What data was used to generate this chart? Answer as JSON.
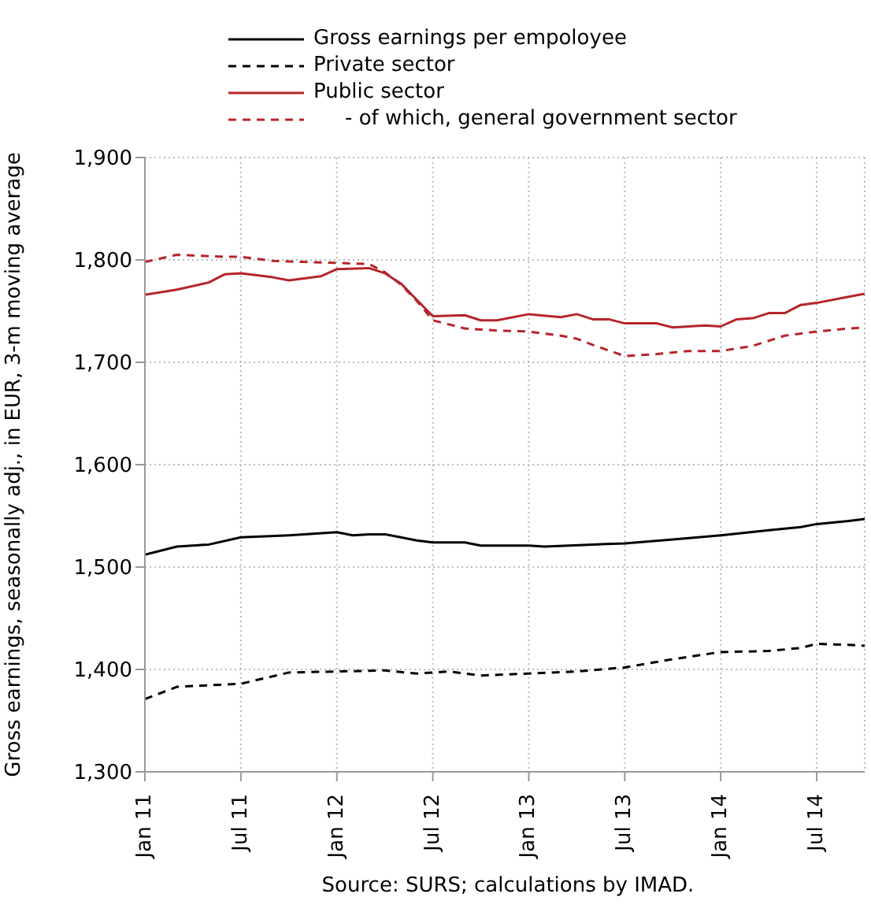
{
  "chart_data": {
    "type": "line",
    "ylabel": "Gross earnings, seasonally adj., in EUR, 3-m moving average",
    "annotations": [
      "Source: SURS; calculations by IMAD."
    ],
    "legend": "top",
    "grid": true,
    "xlim": [
      "2011-01",
      "2014-10"
    ],
    "xticks": [
      {
        "value": "2011-01",
        "label": "Jan 11"
      },
      {
        "value": "2011-07",
        "label": "Jul 11"
      },
      {
        "value": "2012-01",
        "label": "Jan 12"
      },
      {
        "value": "2012-07",
        "label": "Jul 12"
      },
      {
        "value": "2013-01",
        "label": "Jan 13"
      },
      {
        "value": "2013-07",
        "label": "Jul 13"
      },
      {
        "value": "2014-01",
        "label": "Jan 14"
      },
      {
        "value": "2014-07",
        "label": "Jul 14"
      }
    ],
    "ylim": [
      1300,
      1900
    ],
    "yticks": [
      {
        "value": 1300,
        "label": "1,300"
      },
      {
        "value": 1400,
        "label": "1,400"
      },
      {
        "value": 1500,
        "label": "1,500"
      },
      {
        "value": 1600,
        "label": "1,600"
      },
      {
        "value": 1700,
        "label": "1,700"
      },
      {
        "value": 1800,
        "label": "1,800"
      },
      {
        "value": 1900,
        "label": "1,900"
      }
    ],
    "series": [
      {
        "name": "Gross earnings per empoloyee",
        "color": "#000000",
        "line_style": "solid",
        "x": [
          "2011-01",
          "2011-03",
          "2011-05",
          "2011-07",
          "2011-10",
          "2012-01",
          "2012-02",
          "2012-03",
          "2012-04",
          "2012-05",
          "2012-06",
          "2012-07",
          "2012-09",
          "2012-10",
          "2013-01",
          "2013-02",
          "2013-05",
          "2013-07",
          "2013-10",
          "2014-01",
          "2014-04",
          "2014-06",
          "2014-07",
          "2014-09",
          "2014-10"
        ],
        "values": [
          1512,
          1520,
          1522,
          1529,
          1531,
          1534,
          1531,
          1532,
          1532,
          1529,
          1526,
          1524,
          1524,
          1521,
          1521,
          1520,
          1522,
          1523,
          1527,
          1531,
          1536,
          1539,
          1542,
          1545,
          1547
        ]
      },
      {
        "name": "Private sector",
        "color": "#000000",
        "line_style": "dashed",
        "x": [
          "2011-01",
          "2011-03",
          "2011-07",
          "2011-10",
          "2012-01",
          "2012-04",
          "2012-06",
          "2012-08",
          "2012-10",
          "2013-01",
          "2013-04",
          "2013-07",
          "2013-10",
          "2014-01",
          "2014-04",
          "2014-06",
          "2014-07",
          "2014-09",
          "2014-10"
        ],
        "values": [
          1371,
          1383,
          1386,
          1397,
          1398,
          1399,
          1396,
          1398,
          1394,
          1396,
          1398,
          1402,
          1410,
          1417,
          1418,
          1421,
          1425,
          1424,
          1423
        ]
      },
      {
        "name": "Public sector",
        "color": "#b5252b",
        "line_style": "solid",
        "x": [
          "2011-01",
          "2011-03",
          "2011-05",
          "2011-06",
          "2011-07",
          "2011-09",
          "2011-10",
          "2011-12",
          "2012-01",
          "2012-03",
          "2012-04",
          "2012-05",
          "2012-06",
          "2012-07",
          "2012-09",
          "2012-10",
          "2012-11",
          "2013-01",
          "2013-03",
          "2013-04",
          "2013-05",
          "2013-06",
          "2013-07",
          "2013-09",
          "2013-10",
          "2013-12",
          "2014-01",
          "2014-02",
          "2014-03",
          "2014-04",
          "2014-05",
          "2014-06",
          "2014-07",
          "2014-09",
          "2014-10"
        ],
        "values": [
          1766,
          1771,
          1778,
          1786,
          1787,
          1783,
          1780,
          1784,
          1791,
          1792,
          1787,
          1777,
          1761,
          1745,
          1746,
          1741,
          1741,
          1747,
          1744,
          1747,
          1742,
          1742,
          1738,
          1738,
          1734,
          1736,
          1735,
          1742,
          1743,
          1748,
          1748,
          1756,
          1758,
          1764,
          1767
        ]
      },
      {
        "name": "- of which, general government sector",
        "color": "#b5252b",
        "line_style": "dashed",
        "x": [
          "2011-01",
          "2011-03",
          "2011-06",
          "2011-07",
          "2011-09",
          "2011-11",
          "2012-01",
          "2012-03",
          "2012-04",
          "2012-05",
          "2012-06",
          "2012-07",
          "2012-09",
          "2012-11",
          "2013-01",
          "2013-03",
          "2013-04",
          "2013-05",
          "2013-07",
          "2013-09",
          "2013-11",
          "2014-01",
          "2014-03",
          "2014-05",
          "2014-07",
          "2014-09",
          "2014-10"
        ],
        "values": [
          1798,
          1805,
          1803,
          1803,
          1799,
          1798,
          1797,
          1796,
          1788,
          1776,
          1760,
          1741,
          1733,
          1731,
          1730,
          1726,
          1723,
          1717,
          1706,
          1708,
          1711,
          1711,
          1716,
          1726,
          1730,
          1733,
          1734
        ]
      }
    ]
  }
}
